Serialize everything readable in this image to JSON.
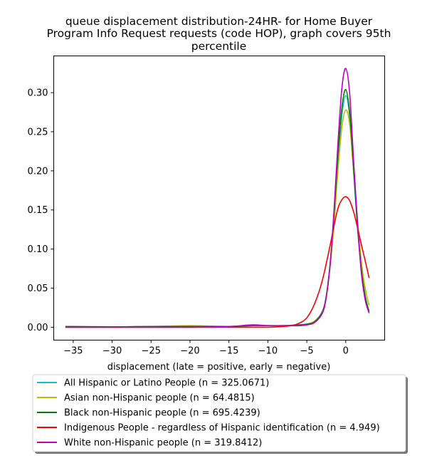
{
  "chart_data": {
    "type": "line",
    "title_lines": [
      "queue displacement distribution-24HR-  for Home Buyer",
      "Program Info Request  requests (code HOP), graph covers 95th",
      "percentile"
    ],
    "xlabel": "displacement (late = positive, early = negative)",
    "ylabel": "",
    "xlim": [
      -37.5,
      5
    ],
    "ylim": [
      -0.0165,
      0.347
    ],
    "xticks": [
      -35,
      -30,
      -25,
      -20,
      -15,
      -10,
      -5,
      0
    ],
    "xtick_labels": [
      "−35",
      "−30",
      "−25",
      "−20",
      "−15",
      "−10",
      "−5",
      "0"
    ],
    "yticks": [
      0.0,
      0.05,
      0.1,
      0.15,
      0.2,
      0.25,
      0.3
    ],
    "ytick_labels": [
      "0.00",
      "0.05",
      "0.10",
      "0.15",
      "0.20",
      "0.25",
      "0.30"
    ],
    "grid": false,
    "legend_position": "below plot",
    "series": [
      {
        "name": "All Hispanic or Latino People (n = 325.0671)",
        "color": "#17becf",
        "x": [
          -36,
          -30,
          -25,
          -20,
          -15,
          -12,
          -10,
          -8,
          -6,
          -5,
          -4,
          -3,
          -2.5,
          -2,
          -1.5,
          -1,
          -0.5,
          0,
          0.5,
          1,
          1.5,
          2,
          2.5,
          3
        ],
        "y": [
          0.001,
          0.0005,
          0.001,
          0.001,
          0.001,
          0.002,
          0.002,
          0.002,
          0.003,
          0.004,
          0.007,
          0.02,
          0.04,
          0.08,
          0.14,
          0.21,
          0.27,
          0.296,
          0.27,
          0.2,
          0.13,
          0.075,
          0.04,
          0.019
        ]
      },
      {
        "name": "Asian non-Hispanic people (n = 64.4815)",
        "color": "#bcbd00",
        "x": [
          -36,
          -30,
          -25,
          -20,
          -15,
          -12,
          -10,
          -8,
          -6,
          -5,
          -4,
          -3,
          -2.5,
          -2,
          -1.5,
          -1,
          -0.5,
          0,
          0.5,
          1,
          1.5,
          2,
          2.5,
          3
        ],
        "y": [
          0.001,
          0.0005,
          0.001,
          0.002,
          0.001,
          0.002,
          0.002,
          0.002,
          0.003,
          0.004,
          0.008,
          0.02,
          0.04,
          0.078,
          0.13,
          0.2,
          0.255,
          0.278,
          0.26,
          0.2,
          0.14,
          0.085,
          0.05,
          0.028
        ]
      },
      {
        "name": "Black non-Hispanic people (n = 695.4239)",
        "color": "#008000",
        "x": [
          -36,
          -30,
          -25,
          -20,
          -15,
          -12,
          -10,
          -8,
          -6,
          -5,
          -4,
          -3,
          -2.5,
          -2,
          -1.5,
          -1,
          -0.5,
          0,
          0.5,
          1,
          1.5,
          2,
          2.5,
          3
        ],
        "y": [
          0.001,
          0.0005,
          0.001,
          0.001,
          0.001,
          0.002,
          0.002,
          0.002,
          0.003,
          0.004,
          0.007,
          0.02,
          0.04,
          0.082,
          0.145,
          0.22,
          0.28,
          0.304,
          0.275,
          0.205,
          0.13,
          0.075,
          0.04,
          0.02
        ]
      },
      {
        "name": "Indigenous People - regardless of Hispanic identification (n = 4.949)",
        "color": "#ff0000",
        "x": [
          -36,
          -30,
          -25,
          -20,
          -15,
          -12,
          -10,
          -8,
          -7,
          -6,
          -5,
          -4,
          -3,
          -2,
          -1.5,
          -1,
          -0.5,
          0,
          0.5,
          1,
          1.5,
          2,
          2.5,
          3
        ],
        "y": [
          0.0,
          0.0,
          0.0,
          0.0,
          0.0,
          0.0,
          0.0,
          0.001,
          0.002,
          0.005,
          0.012,
          0.03,
          0.06,
          0.105,
          0.13,
          0.152,
          0.163,
          0.167,
          0.162,
          0.148,
          0.128,
          0.106,
          0.085,
          0.063
        ]
      },
      {
        "name": "White non-Hispanic people (n = 319.8412)",
        "color": "#bf00bf",
        "x": [
          -36,
          -30,
          -25,
          -20,
          -15,
          -12,
          -10,
          -8,
          -6,
          -5,
          -4,
          -3,
          -2.5,
          -2,
          -1.5,
          -1,
          -0.5,
          0,
          0.5,
          1,
          1.5,
          2,
          2.5,
          3
        ],
        "y": [
          0.0,
          0.0,
          0.0,
          0.0,
          0.001,
          0.003,
          0.002,
          0.002,
          0.002,
          0.003,
          0.006,
          0.018,
          0.038,
          0.08,
          0.15,
          0.235,
          0.305,
          0.331,
          0.3,
          0.215,
          0.135,
          0.07,
          0.035,
          0.018
        ]
      }
    ]
  }
}
